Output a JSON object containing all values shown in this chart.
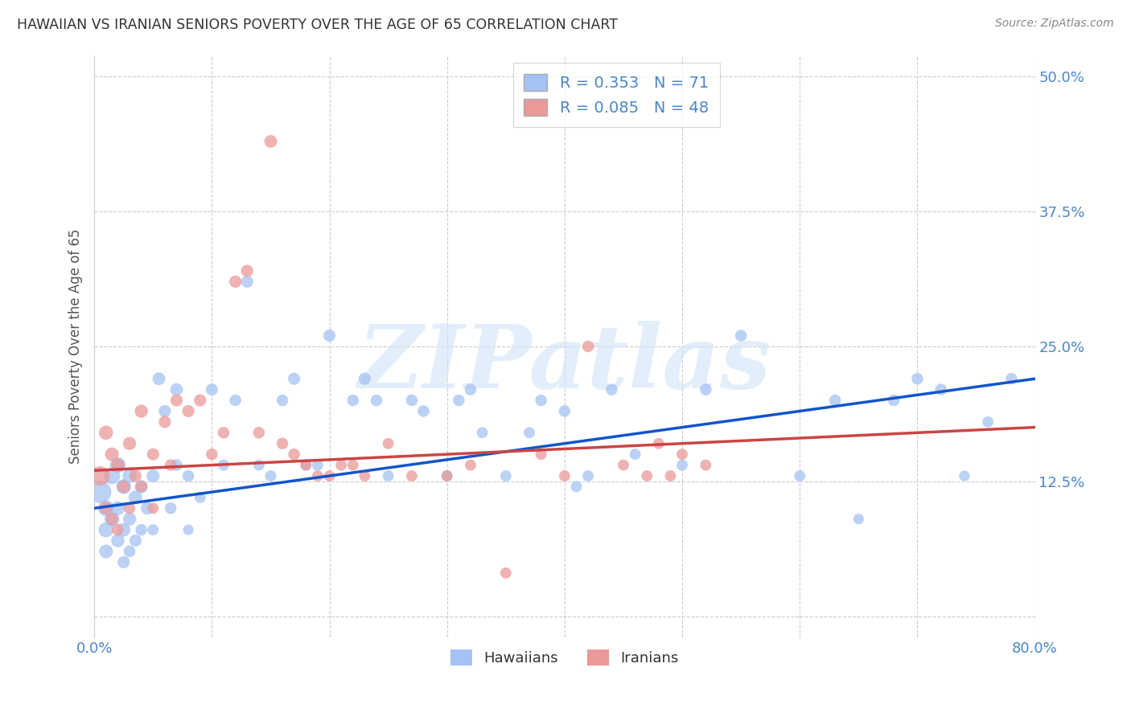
{
  "title": "HAWAIIAN VS IRANIAN SENIORS POVERTY OVER THE AGE OF 65 CORRELATION CHART",
  "source": "Source: ZipAtlas.com",
  "ylabel": "Seniors Poverty Over the Age of 65",
  "xlim": [
    0.0,
    0.8
  ],
  "ylim": [
    -0.02,
    0.52
  ],
  "yticks": [
    0.0,
    0.125,
    0.25,
    0.375,
    0.5
  ],
  "ytick_labels": [
    "",
    "12.5%",
    "25.0%",
    "37.5%",
    "50.0%"
  ],
  "xticks": [
    0.0,
    0.1,
    0.2,
    0.3,
    0.4,
    0.5,
    0.6,
    0.7,
    0.8
  ],
  "xtick_labels": [
    "0.0%",
    "",
    "",
    "",
    "",
    "",
    "",
    "",
    "80.0%"
  ],
  "hawaiian_R": 0.353,
  "hawaiian_N": 71,
  "iranian_R": 0.085,
  "iranian_N": 48,
  "hawaiian_color": "#a4c2f4",
  "iranian_color": "#ea9999",
  "trend_hawaiian_color": "#1155cc",
  "trend_iranian_color": "#cc4444",
  "background_color": "#ffffff",
  "grid_color": "#cccccc",
  "title_color": "#333333",
  "axis_label_color": "#555555",
  "tick_label_color": "#4a86c8",
  "hawaiian_trend_start": 0.1,
  "hawaiian_trend_end": 0.22,
  "iranian_trend_start": 0.135,
  "iranian_trend_end": 0.175,
  "hawaiian_x": [
    0.005,
    0.01,
    0.01,
    0.01,
    0.015,
    0.015,
    0.02,
    0.02,
    0.02,
    0.025,
    0.025,
    0.025,
    0.03,
    0.03,
    0.03,
    0.035,
    0.035,
    0.04,
    0.04,
    0.045,
    0.05,
    0.05,
    0.055,
    0.06,
    0.065,
    0.07,
    0.07,
    0.08,
    0.08,
    0.09,
    0.1,
    0.11,
    0.12,
    0.13,
    0.14,
    0.15,
    0.16,
    0.17,
    0.18,
    0.19,
    0.2,
    0.22,
    0.23,
    0.24,
    0.25,
    0.27,
    0.28,
    0.3,
    0.31,
    0.32,
    0.33,
    0.35,
    0.37,
    0.38,
    0.4,
    0.41,
    0.42,
    0.44,
    0.46,
    0.5,
    0.52,
    0.55,
    0.6,
    0.63,
    0.65,
    0.68,
    0.7,
    0.72,
    0.74,
    0.76,
    0.78
  ],
  "hawaiian_y": [
    0.115,
    0.1,
    0.08,
    0.06,
    0.13,
    0.09,
    0.14,
    0.1,
    0.07,
    0.12,
    0.08,
    0.05,
    0.13,
    0.09,
    0.06,
    0.11,
    0.07,
    0.12,
    0.08,
    0.1,
    0.13,
    0.08,
    0.22,
    0.19,
    0.1,
    0.21,
    0.14,
    0.13,
    0.08,
    0.11,
    0.21,
    0.14,
    0.2,
    0.31,
    0.14,
    0.13,
    0.2,
    0.22,
    0.14,
    0.14,
    0.26,
    0.2,
    0.22,
    0.2,
    0.13,
    0.2,
    0.19,
    0.13,
    0.2,
    0.21,
    0.17,
    0.13,
    0.17,
    0.2,
    0.19,
    0.12,
    0.13,
    0.21,
    0.15,
    0.14,
    0.21,
    0.26,
    0.13,
    0.2,
    0.09,
    0.2,
    0.22,
    0.21,
    0.13,
    0.18,
    0.22
  ],
  "hawaiian_sizes": [
    400,
    200,
    180,
    150,
    220,
    180,
    200,
    160,
    140,
    180,
    150,
    120,
    160,
    140,
    110,
    150,
    120,
    140,
    110,
    130,
    140,
    100,
    130,
    120,
    110,
    130,
    110,
    110,
    90,
    100,
    120,
    100,
    110,
    120,
    100,
    100,
    110,
    120,
    100,
    100,
    120,
    110,
    120,
    110,
    100,
    110,
    110,
    100,
    110,
    110,
    100,
    100,
    100,
    110,
    110,
    100,
    100,
    110,
    100,
    100,
    110,
    110,
    100,
    110,
    90,
    110,
    110,
    110,
    90,
    100,
    110
  ],
  "iranian_x": [
    0.005,
    0.01,
    0.01,
    0.015,
    0.015,
    0.02,
    0.02,
    0.025,
    0.03,
    0.03,
    0.035,
    0.04,
    0.04,
    0.05,
    0.05,
    0.06,
    0.065,
    0.07,
    0.08,
    0.09,
    0.1,
    0.11,
    0.12,
    0.13,
    0.14,
    0.15,
    0.16,
    0.17,
    0.18,
    0.19,
    0.2,
    0.21,
    0.22,
    0.23,
    0.25,
    0.27,
    0.3,
    0.32,
    0.35,
    0.38,
    0.4,
    0.42,
    0.45,
    0.47,
    0.48,
    0.49,
    0.5,
    0.52
  ],
  "iranian_y": [
    0.13,
    0.17,
    0.1,
    0.15,
    0.09,
    0.14,
    0.08,
    0.12,
    0.16,
    0.1,
    0.13,
    0.19,
    0.12,
    0.15,
    0.1,
    0.18,
    0.14,
    0.2,
    0.19,
    0.2,
    0.15,
    0.17,
    0.31,
    0.32,
    0.17,
    0.44,
    0.16,
    0.15,
    0.14,
    0.13,
    0.13,
    0.14,
    0.14,
    0.13,
    0.16,
    0.13,
    0.13,
    0.14,
    0.04,
    0.15,
    0.13,
    0.25,
    0.14,
    0.13,
    0.16,
    0.13,
    0.15,
    0.14
  ],
  "iranian_sizes": [
    300,
    160,
    130,
    150,
    120,
    140,
    110,
    130,
    140,
    110,
    120,
    140,
    110,
    120,
    100,
    120,
    110,
    120,
    120,
    120,
    110,
    110,
    120,
    120,
    110,
    130,
    110,
    110,
    100,
    100,
    100,
    100,
    100,
    100,
    100,
    100,
    100,
    100,
    100,
    100,
    100,
    110,
    100,
    100,
    100,
    100,
    100,
    100
  ]
}
